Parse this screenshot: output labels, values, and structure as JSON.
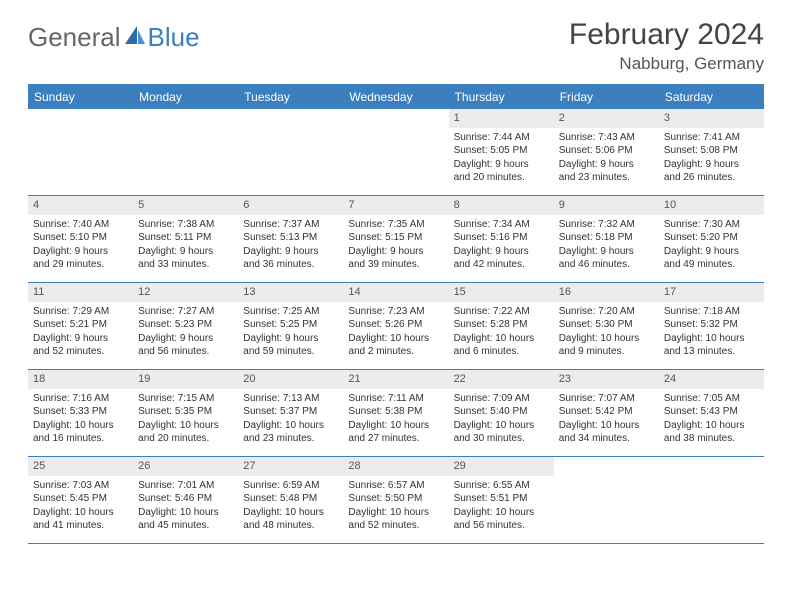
{
  "brand": {
    "part1": "General",
    "part2": "Blue"
  },
  "title": "February 2024",
  "location": "Nabburg, Germany",
  "colors": {
    "accent": "#3b7fbf",
    "daynum_bg": "#ececec",
    "text": "#333333",
    "header_text": "#555555"
  },
  "daysOfWeek": [
    "Sunday",
    "Monday",
    "Tuesday",
    "Wednesday",
    "Thursday",
    "Friday",
    "Saturday"
  ],
  "weeks": [
    [
      {
        "n": "",
        "l1": "",
        "l2": "",
        "l3": "",
        "l4": ""
      },
      {
        "n": "",
        "l1": "",
        "l2": "",
        "l3": "",
        "l4": ""
      },
      {
        "n": "",
        "l1": "",
        "l2": "",
        "l3": "",
        "l4": ""
      },
      {
        "n": "",
        "l1": "",
        "l2": "",
        "l3": "",
        "l4": ""
      },
      {
        "n": "1",
        "l1": "Sunrise: 7:44 AM",
        "l2": "Sunset: 5:05 PM",
        "l3": "Daylight: 9 hours",
        "l4": "and 20 minutes."
      },
      {
        "n": "2",
        "l1": "Sunrise: 7:43 AM",
        "l2": "Sunset: 5:06 PM",
        "l3": "Daylight: 9 hours",
        "l4": "and 23 minutes."
      },
      {
        "n": "3",
        "l1": "Sunrise: 7:41 AM",
        "l2": "Sunset: 5:08 PM",
        "l3": "Daylight: 9 hours",
        "l4": "and 26 minutes."
      }
    ],
    [
      {
        "n": "4",
        "l1": "Sunrise: 7:40 AM",
        "l2": "Sunset: 5:10 PM",
        "l3": "Daylight: 9 hours",
        "l4": "and 29 minutes."
      },
      {
        "n": "5",
        "l1": "Sunrise: 7:38 AM",
        "l2": "Sunset: 5:11 PM",
        "l3": "Daylight: 9 hours",
        "l4": "and 33 minutes."
      },
      {
        "n": "6",
        "l1": "Sunrise: 7:37 AM",
        "l2": "Sunset: 5:13 PM",
        "l3": "Daylight: 9 hours",
        "l4": "and 36 minutes."
      },
      {
        "n": "7",
        "l1": "Sunrise: 7:35 AM",
        "l2": "Sunset: 5:15 PM",
        "l3": "Daylight: 9 hours",
        "l4": "and 39 minutes."
      },
      {
        "n": "8",
        "l1": "Sunrise: 7:34 AM",
        "l2": "Sunset: 5:16 PM",
        "l3": "Daylight: 9 hours",
        "l4": "and 42 minutes."
      },
      {
        "n": "9",
        "l1": "Sunrise: 7:32 AM",
        "l2": "Sunset: 5:18 PM",
        "l3": "Daylight: 9 hours",
        "l4": "and 46 minutes."
      },
      {
        "n": "10",
        "l1": "Sunrise: 7:30 AM",
        "l2": "Sunset: 5:20 PM",
        "l3": "Daylight: 9 hours",
        "l4": "and 49 minutes."
      }
    ],
    [
      {
        "n": "11",
        "l1": "Sunrise: 7:29 AM",
        "l2": "Sunset: 5:21 PM",
        "l3": "Daylight: 9 hours",
        "l4": "and 52 minutes."
      },
      {
        "n": "12",
        "l1": "Sunrise: 7:27 AM",
        "l2": "Sunset: 5:23 PM",
        "l3": "Daylight: 9 hours",
        "l4": "and 56 minutes."
      },
      {
        "n": "13",
        "l1": "Sunrise: 7:25 AM",
        "l2": "Sunset: 5:25 PM",
        "l3": "Daylight: 9 hours",
        "l4": "and 59 minutes."
      },
      {
        "n": "14",
        "l1": "Sunrise: 7:23 AM",
        "l2": "Sunset: 5:26 PM",
        "l3": "Daylight: 10 hours",
        "l4": "and 2 minutes."
      },
      {
        "n": "15",
        "l1": "Sunrise: 7:22 AM",
        "l2": "Sunset: 5:28 PM",
        "l3": "Daylight: 10 hours",
        "l4": "and 6 minutes."
      },
      {
        "n": "16",
        "l1": "Sunrise: 7:20 AM",
        "l2": "Sunset: 5:30 PM",
        "l3": "Daylight: 10 hours",
        "l4": "and 9 minutes."
      },
      {
        "n": "17",
        "l1": "Sunrise: 7:18 AM",
        "l2": "Sunset: 5:32 PM",
        "l3": "Daylight: 10 hours",
        "l4": "and 13 minutes."
      }
    ],
    [
      {
        "n": "18",
        "l1": "Sunrise: 7:16 AM",
        "l2": "Sunset: 5:33 PM",
        "l3": "Daylight: 10 hours",
        "l4": "and 16 minutes."
      },
      {
        "n": "19",
        "l1": "Sunrise: 7:15 AM",
        "l2": "Sunset: 5:35 PM",
        "l3": "Daylight: 10 hours",
        "l4": "and 20 minutes."
      },
      {
        "n": "20",
        "l1": "Sunrise: 7:13 AM",
        "l2": "Sunset: 5:37 PM",
        "l3": "Daylight: 10 hours",
        "l4": "and 23 minutes."
      },
      {
        "n": "21",
        "l1": "Sunrise: 7:11 AM",
        "l2": "Sunset: 5:38 PM",
        "l3": "Daylight: 10 hours",
        "l4": "and 27 minutes."
      },
      {
        "n": "22",
        "l1": "Sunrise: 7:09 AM",
        "l2": "Sunset: 5:40 PM",
        "l3": "Daylight: 10 hours",
        "l4": "and 30 minutes."
      },
      {
        "n": "23",
        "l1": "Sunrise: 7:07 AM",
        "l2": "Sunset: 5:42 PM",
        "l3": "Daylight: 10 hours",
        "l4": "and 34 minutes."
      },
      {
        "n": "24",
        "l1": "Sunrise: 7:05 AM",
        "l2": "Sunset: 5:43 PM",
        "l3": "Daylight: 10 hours",
        "l4": "and 38 minutes."
      }
    ],
    [
      {
        "n": "25",
        "l1": "Sunrise: 7:03 AM",
        "l2": "Sunset: 5:45 PM",
        "l3": "Daylight: 10 hours",
        "l4": "and 41 minutes."
      },
      {
        "n": "26",
        "l1": "Sunrise: 7:01 AM",
        "l2": "Sunset: 5:46 PM",
        "l3": "Daylight: 10 hours",
        "l4": "and 45 minutes."
      },
      {
        "n": "27",
        "l1": "Sunrise: 6:59 AM",
        "l2": "Sunset: 5:48 PM",
        "l3": "Daylight: 10 hours",
        "l4": "and 48 minutes."
      },
      {
        "n": "28",
        "l1": "Sunrise: 6:57 AM",
        "l2": "Sunset: 5:50 PM",
        "l3": "Daylight: 10 hours",
        "l4": "and 52 minutes."
      },
      {
        "n": "29",
        "l1": "Sunrise: 6:55 AM",
        "l2": "Sunset: 5:51 PM",
        "l3": "Daylight: 10 hours",
        "l4": "and 56 minutes."
      },
      {
        "n": "",
        "l1": "",
        "l2": "",
        "l3": "",
        "l4": ""
      },
      {
        "n": "",
        "l1": "",
        "l2": "",
        "l3": "",
        "l4": ""
      }
    ]
  ]
}
